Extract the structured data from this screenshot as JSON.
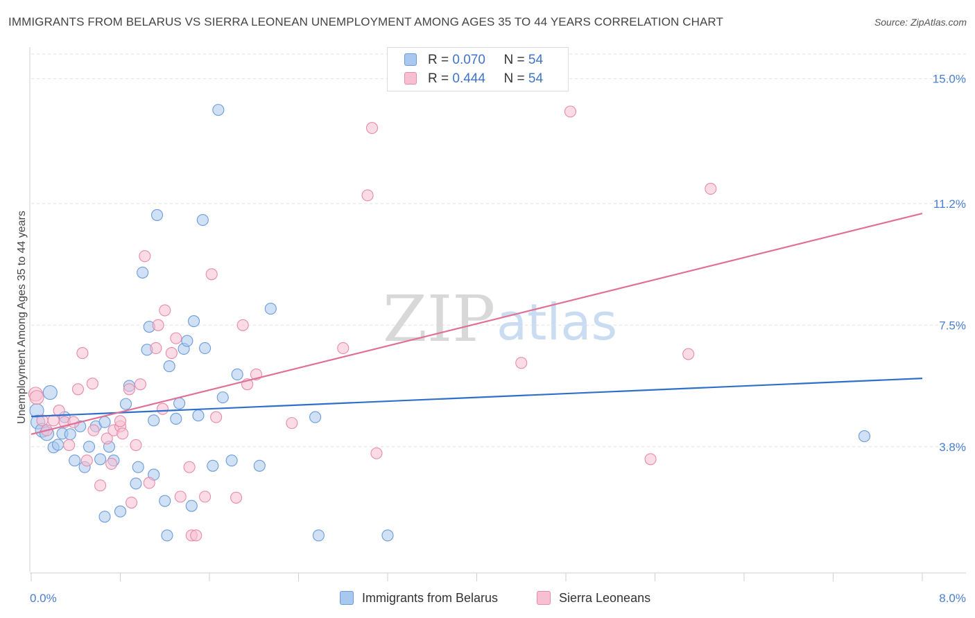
{
  "chart_data": {
    "type": "scatter",
    "title": "IMMIGRANTS FROM BELARUS VS SIERRA LEONEAN UNEMPLOYMENT AMONG AGES 35 TO 44 YEARS CORRELATION CHART",
    "source": "Source: ZipAtlas.com",
    "ylabel": "Unemployment Among Ages 35 to 44 years",
    "xlim": [
      0.0,
      8.0
    ],
    "ylim": [
      0.0,
      15.75
    ],
    "x_tick_labels": [
      "0.0%",
      "8.0%"
    ],
    "y_tick_values": [
      3.8,
      7.5,
      11.2,
      15.0
    ],
    "y_tick_labels": [
      "3.8%",
      "7.5%",
      "11.2%",
      "15.0%"
    ],
    "watermark": {
      "zip": "ZIP",
      "atlas": "atlas"
    },
    "series": [
      {
        "name": "Immigrants from Belarus",
        "color": "#a9c8ef",
        "stroke": "#6a9bdc",
        "line_color": "#2f6fcc",
        "R": "0.070",
        "N": "54",
        "trend": {
          "x0": 0.0,
          "y0": 4.72,
          "x1": 8.0,
          "y1": 5.88
        },
        "points": [
          [
            0.05,
            4.9
          ],
          [
            0.06,
            4.55
          ],
          [
            0.1,
            4.3
          ],
          [
            0.14,
            4.2
          ],
          [
            0.17,
            5.45
          ],
          [
            0.2,
            3.78
          ],
          [
            0.24,
            3.86
          ],
          [
            0.3,
            4.7
          ],
          [
            0.28,
            4.2
          ],
          [
            0.35,
            4.18
          ],
          [
            0.39,
            3.38
          ],
          [
            0.44,
            4.42
          ],
          [
            0.48,
            3.18
          ],
          [
            0.52,
            3.8
          ],
          [
            0.58,
            4.42
          ],
          [
            0.62,
            3.42
          ],
          [
            0.66,
            4.55
          ],
          [
            0.7,
            3.8
          ],
          [
            0.74,
            3.38
          ],
          [
            0.66,
            1.67
          ],
          [
            0.8,
            1.83
          ],
          [
            0.85,
            5.1
          ],
          [
            0.88,
            5.65
          ],
          [
            0.94,
            2.68
          ],
          [
            0.96,
            3.18
          ],
          [
            1.0,
            9.1
          ],
          [
            1.04,
            6.75
          ],
          [
            1.06,
            7.45
          ],
          [
            1.1,
            2.95
          ],
          [
            1.13,
            10.85
          ],
          [
            1.2,
            2.15
          ],
          [
            1.24,
            6.25
          ],
          [
            1.3,
            4.65
          ],
          [
            1.33,
            5.12
          ],
          [
            1.37,
            6.78
          ],
          [
            1.4,
            7.02
          ],
          [
            1.44,
            2.0
          ],
          [
            1.46,
            7.62
          ],
          [
            1.5,
            4.75
          ],
          [
            1.54,
            10.7
          ],
          [
            1.56,
            6.8
          ],
          [
            1.63,
            3.22
          ],
          [
            1.68,
            14.05
          ],
          [
            1.72,
            5.3
          ],
          [
            1.8,
            3.38
          ],
          [
            1.85,
            6.0
          ],
          [
            2.05,
            3.22
          ],
          [
            2.15,
            8.0
          ],
          [
            2.55,
            4.7
          ],
          [
            2.58,
            1.1
          ],
          [
            3.2,
            1.1
          ],
          [
            7.48,
            4.12
          ],
          [
            1.1,
            4.6
          ],
          [
            1.22,
            1.1
          ]
        ]
      },
      {
        "name": "Sierra Leoneans",
        "color": "#f7c0d2",
        "stroke": "#e88aa8",
        "line_color": "#e07098",
        "R": "0.444",
        "N": "54",
        "trend": {
          "x0": 0.0,
          "y0": 4.18,
          "x1": 8.0,
          "y1": 10.9
        },
        "points": [
          [
            0.04,
            5.4
          ],
          [
            0.05,
            5.3
          ],
          [
            0.1,
            4.6
          ],
          [
            0.14,
            4.3
          ],
          [
            0.2,
            4.6
          ],
          [
            0.25,
            4.9
          ],
          [
            0.3,
            4.55
          ],
          [
            0.34,
            3.85
          ],
          [
            0.38,
            4.55
          ],
          [
            0.42,
            5.55
          ],
          [
            0.46,
            6.65
          ],
          [
            0.5,
            3.38
          ],
          [
            0.55,
            5.72
          ],
          [
            0.62,
            2.62
          ],
          [
            0.68,
            4.05
          ],
          [
            0.72,
            3.28
          ],
          [
            0.74,
            4.3
          ],
          [
            0.8,
            4.42
          ],
          [
            0.82,
            4.2
          ],
          [
            0.88,
            5.55
          ],
          [
            0.9,
            2.1
          ],
          [
            0.94,
            3.85
          ],
          [
            0.98,
            5.7
          ],
          [
            1.02,
            9.6
          ],
          [
            1.06,
            2.7
          ],
          [
            1.12,
            6.8
          ],
          [
            1.14,
            7.5
          ],
          [
            1.2,
            7.95
          ],
          [
            1.26,
            6.65
          ],
          [
            1.3,
            7.1
          ],
          [
            1.34,
            2.28
          ],
          [
            1.42,
            3.18
          ],
          [
            1.44,
            1.1
          ],
          [
            1.48,
            1.1
          ],
          [
            1.56,
            2.28
          ],
          [
            1.62,
            9.05
          ],
          [
            1.66,
            4.7
          ],
          [
            1.84,
            2.25
          ],
          [
            1.9,
            7.5
          ],
          [
            1.94,
            5.7
          ],
          [
            2.02,
            6.0
          ],
          [
            2.34,
            4.52
          ],
          [
            2.8,
            6.8
          ],
          [
            3.02,
            11.45
          ],
          [
            3.06,
            13.5
          ],
          [
            3.1,
            3.6
          ],
          [
            4.4,
            6.35
          ],
          [
            4.84,
            14.0
          ],
          [
            5.56,
            3.42
          ],
          [
            5.9,
            6.62
          ],
          [
            6.1,
            11.65
          ],
          [
            0.56,
            4.3
          ],
          [
            0.8,
            4.58
          ],
          [
            1.18,
            4.95
          ]
        ]
      }
    ]
  },
  "legend": {
    "r_label": "R =",
    "n_label": "N =",
    "row1_r": "0.070",
    "row1_n": "54",
    "row2_r": "0.444",
    "row2_n": "54"
  },
  "bottom_legend": {
    "item1": "Immigrants from Belarus",
    "item2": "Sierra Leoneans"
  }
}
